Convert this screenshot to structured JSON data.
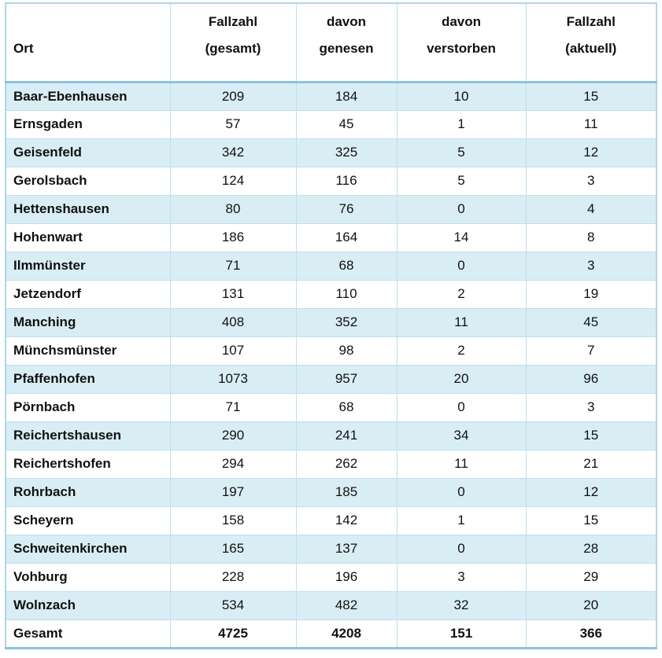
{
  "chart_data": {
    "type": "table",
    "columns": [
      {
        "line1": "",
        "line2": "Ort"
      },
      {
        "line1": "Fallzahl",
        "line2": "(gesamt)"
      },
      {
        "line1": "davon",
        "line2": "genesen"
      },
      {
        "line1": "davon",
        "line2": "verstorben"
      },
      {
        "line1": "Fallzahl",
        "line2": "(aktuell)"
      }
    ],
    "rows": [
      {
        "ort": "Baar-Ebenhausen",
        "fallzahl_gesamt": 209,
        "davon_genesen": 184,
        "davon_verstorben": 10,
        "fallzahl_aktuell": 15
      },
      {
        "ort": "Ernsgaden",
        "fallzahl_gesamt": 57,
        "davon_genesen": 45,
        "davon_verstorben": 1,
        "fallzahl_aktuell": 11
      },
      {
        "ort": "Geisenfeld",
        "fallzahl_gesamt": 342,
        "davon_genesen": 325,
        "davon_verstorben": 5,
        "fallzahl_aktuell": 12
      },
      {
        "ort": "Gerolsbach",
        "fallzahl_gesamt": 124,
        "davon_genesen": 116,
        "davon_verstorben": 5,
        "fallzahl_aktuell": 3
      },
      {
        "ort": "Hettenshausen",
        "fallzahl_gesamt": 80,
        "davon_genesen": 76,
        "davon_verstorben": 0,
        "fallzahl_aktuell": 4
      },
      {
        "ort": "Hohenwart",
        "fallzahl_gesamt": 186,
        "davon_genesen": 164,
        "davon_verstorben": 14,
        "fallzahl_aktuell": 8
      },
      {
        "ort": "Ilmmünster",
        "fallzahl_gesamt": 71,
        "davon_genesen": 68,
        "davon_verstorben": 0,
        "fallzahl_aktuell": 3
      },
      {
        "ort": "Jetzendorf",
        "fallzahl_gesamt": 131,
        "davon_genesen": 110,
        "davon_verstorben": 2,
        "fallzahl_aktuell": 19
      },
      {
        "ort": "Manching",
        "fallzahl_gesamt": 408,
        "davon_genesen": 352,
        "davon_verstorben": 11,
        "fallzahl_aktuell": 45
      },
      {
        "ort": "Münchsmünster",
        "fallzahl_gesamt": 107,
        "davon_genesen": 98,
        "davon_verstorben": 2,
        "fallzahl_aktuell": 7
      },
      {
        "ort": "Pfaffenhofen",
        "fallzahl_gesamt": 1073,
        "davon_genesen": 957,
        "davon_verstorben": 20,
        "fallzahl_aktuell": 96
      },
      {
        "ort": "Pörnbach",
        "fallzahl_gesamt": 71,
        "davon_genesen": 68,
        "davon_verstorben": 0,
        "fallzahl_aktuell": 3
      },
      {
        "ort": "Reichertshausen",
        "fallzahl_gesamt": 290,
        "davon_genesen": 241,
        "davon_verstorben": 34,
        "fallzahl_aktuell": 15
      },
      {
        "ort": "Reichertshofen",
        "fallzahl_gesamt": 294,
        "davon_genesen": 262,
        "davon_verstorben": 11,
        "fallzahl_aktuell": 21
      },
      {
        "ort": "Rohrbach",
        "fallzahl_gesamt": 197,
        "davon_genesen": 185,
        "davon_verstorben": 0,
        "fallzahl_aktuell": 12
      },
      {
        "ort": "Scheyern",
        "fallzahl_gesamt": 158,
        "davon_genesen": 142,
        "davon_verstorben": 1,
        "fallzahl_aktuell": 15
      },
      {
        "ort": "Schweitenkirchen",
        "fallzahl_gesamt": 165,
        "davon_genesen": 137,
        "davon_verstorben": 0,
        "fallzahl_aktuell": 28
      },
      {
        "ort": "Vohburg",
        "fallzahl_gesamt": 228,
        "davon_genesen": 196,
        "davon_verstorben": 3,
        "fallzahl_aktuell": 29
      },
      {
        "ort": "Wolnzach",
        "fallzahl_gesamt": 534,
        "davon_genesen": 482,
        "davon_verstorben": 32,
        "fallzahl_aktuell": 20
      }
    ],
    "footer": {
      "ort": "Gesamt",
      "fallzahl_gesamt": 4725,
      "davon_genesen": 4208,
      "davon_verstorben": 151,
      "fallzahl_aktuell": 366
    }
  },
  "colors": {
    "stripe_blue": "#d9edf5",
    "border_light": "#bedfee",
    "border_dark": "#8cc3da",
    "text": "#111111",
    "background": "#ffffff"
  }
}
